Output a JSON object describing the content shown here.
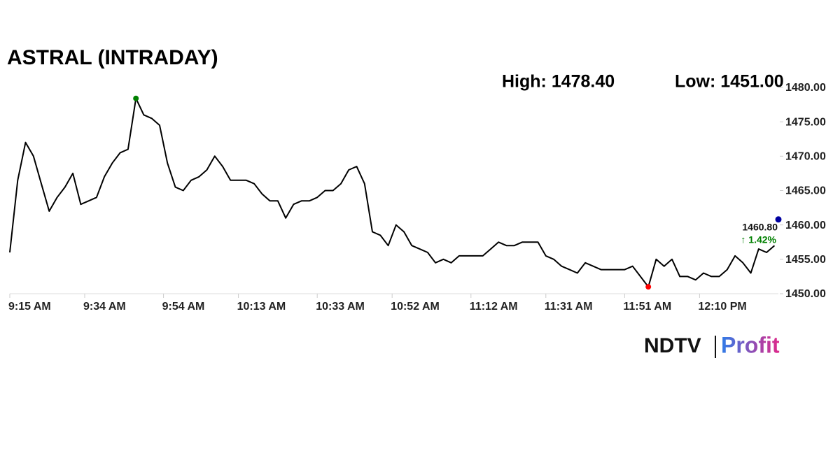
{
  "chart_data": {
    "type": "line",
    "title": "ASTRAL (INTRADAY)",
    "high_text": "High: 1478.40",
    "low_text": "Low: 1451.00",
    "x": [
      "9:15 AM",
      "9:17 AM",
      "9:19 AM",
      "9:21 AM",
      "9:23 AM",
      "9:25 AM",
      "9:27 AM",
      "9:29 AM",
      "9:31 AM",
      "9:33 AM",
      "9:35 AM",
      "9:37 AM",
      "9:39 AM",
      "9:41 AM",
      "9:43 AM",
      "9:45 AM",
      "9:47 AM",
      "9:49 AM",
      "9:51 AM",
      "9:53 AM",
      "9:55 AM",
      "9:57 AM",
      "9:59 AM",
      "10:01 AM",
      "10:03 AM",
      "10:05 AM",
      "10:07 AM",
      "10:09 AM",
      "10:11 AM",
      "10:13 AM",
      "10:15 AM",
      "10:17 AM",
      "10:19 AM",
      "10:21 AM",
      "10:23 AM",
      "10:25 AM",
      "10:27 AM",
      "10:29 AM",
      "10:31 AM",
      "10:33 AM",
      "10:35 AM",
      "10:37 AM",
      "10:39 AM",
      "10:41 AM",
      "10:43 AM",
      "10:45 AM",
      "10:47 AM",
      "10:49 AM",
      "10:51 AM",
      "10:53 AM",
      "10:55 AM",
      "10:57 AM",
      "10:59 AM",
      "11:01 AM",
      "11:03 AM",
      "11:05 AM",
      "11:07 AM",
      "11:09 AM",
      "11:11 AM",
      "11:13 AM",
      "11:15 AM",
      "11:17 AM",
      "11:19 AM",
      "11:21 AM",
      "11:23 AM",
      "11:25 AM",
      "11:27 AM",
      "11:29 AM",
      "11:31 AM",
      "11:33 AM",
      "11:35 AM",
      "11:37 AM",
      "11:39 AM",
      "11:41 AM",
      "11:43 AM",
      "11:45 AM",
      "11:47 AM",
      "11:49 AM",
      "11:51 AM",
      "11:53 AM",
      "11:55 AM",
      "11:57 AM",
      "11:59 AM",
      "12:01 PM",
      "12:03 PM",
      "12:05 PM",
      "12:07 PM",
      "12:09 PM",
      "12:11 PM",
      "12:13 PM",
      "12:15 PM",
      "12:17 PM",
      "12:19 PM",
      "12:21 PM",
      "12:23 PM",
      "12:25 PM",
      "12:27 PM",
      "12:29 PM"
    ],
    "values": [
      1456,
      1466.5,
      1472,
      1470,
      1466,
      1462,
      1464,
      1465.5,
      1467.5,
      1463,
      1463.5,
      1464,
      1467,
      1469,
      1470.5,
      1471,
      1478.4,
      1476,
      1475.5,
      1474.5,
      1469,
      1465.5,
      1465,
      1466.5,
      1467,
      1468,
      1470,
      1468.5,
      1466.5,
      1466.5,
      1466.5,
      1466,
      1464.5,
      1463.5,
      1463.5,
      1461,
      1463,
      1463.5,
      1463.5,
      1464,
      1465,
      1465,
      1466,
      1468,
      1468.5,
      1466,
      1459,
      1458.5,
      1457,
      1460,
      1459,
      1457,
      1456.5,
      1456,
      1454.5,
      1455,
      1454.5,
      1455.5,
      1455.5,
      1455.5,
      1455.5,
      1456.5,
      1457.5,
      1457,
      1457,
      1457.5,
      1457.5,
      1457.5,
      1455.5,
      1455,
      1454,
      1453.5,
      1453,
      1454.5,
      1454,
      1453.5,
      1453.5,
      1453.5,
      1453.5,
      1454,
      1452.5,
      1451,
      1455,
      1454,
      1455,
      1452.5,
      1452.5,
      1452,
      1453,
      1452.5,
      1452.5,
      1453.5,
      1455.5,
      1454.5,
      1453,
      1456.5,
      1456,
      1457
    ],
    "color": "#000000",
    "high_color": "#008000",
    "low_color": "#ff0000",
    "last": {
      "value": 1460.8,
      "label": "1460.80",
      "change": "↑ 1.42%",
      "color": "#0000a0",
      "change_color": "#008000"
    },
    "xlim": [
      "9:15 AM",
      "12:30 PM"
    ],
    "xticks": [
      "9:15 AM",
      "9:34 AM",
      "9:54 AM",
      "10:13 AM",
      "10:33 AM",
      "10:52 AM",
      "11:12 AM",
      "11:31 AM",
      "11:51 AM",
      "12:10 PM"
    ],
    "ylim": [
      1450,
      1480
    ],
    "yticks": [
      {
        "value": 1450,
        "label": "1450.00"
      },
      {
        "value": 1455,
        "label": "1455.00"
      },
      {
        "value": 1460,
        "label": "1460.00"
      },
      {
        "value": 1465,
        "label": "1465.00"
      },
      {
        "value": 1470,
        "label": "1470.00"
      },
      {
        "value": 1475,
        "label": "1475.00"
      },
      {
        "value": 1480,
        "label": "1480.00"
      }
    ],
    "grid": false
  },
  "logo": {
    "left": "NDTV",
    "right": "Profit"
  }
}
